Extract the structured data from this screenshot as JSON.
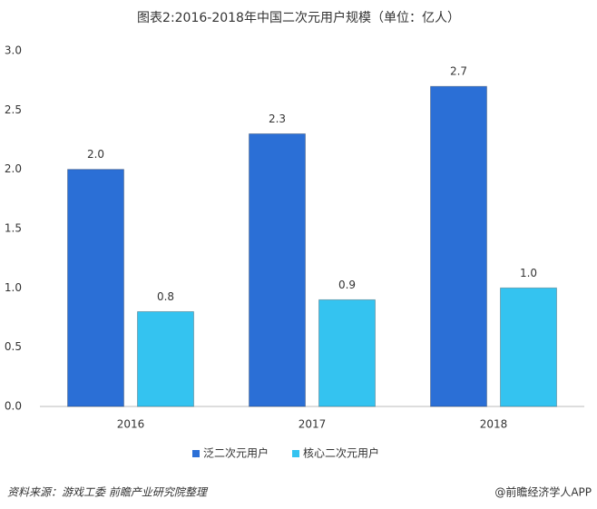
{
  "chart_data": {
    "type": "bar",
    "title": "图表2:2016-2018年中国二次元用户规模（单位：亿人）",
    "categories": [
      "2016",
      "2017",
      "2018"
    ],
    "series": [
      {
        "name": "泛二次元用户",
        "color": "#2b6fd6",
        "values": [
          2.0,
          2.3,
          2.7
        ],
        "value_labels": [
          "2.0",
          "2.3",
          "2.7"
        ]
      },
      {
        "name": "核心二次元用户",
        "color": "#34c3f0",
        "values": [
          0.8,
          0.9,
          1.0
        ],
        "value_labels": [
          "0.8",
          "0.9",
          "1.0"
        ]
      }
    ],
    "ylim": [
      0,
      3
    ],
    "yticks": [
      {
        "value": 0,
        "label": "0.0"
      },
      0.5,
      {
        "value": 1,
        "label": "1.0"
      },
      1.5,
      {
        "value": 2,
        "label": "2.0"
      },
      2.5,
      {
        "value": 3,
        "label": "3.0"
      }
    ],
    "grid": false,
    "legend": "bottom",
    "source": "资料来源：游戏工委 前瞻产业研究院整理",
    "credit": "@前瞻经济学人APP"
  }
}
